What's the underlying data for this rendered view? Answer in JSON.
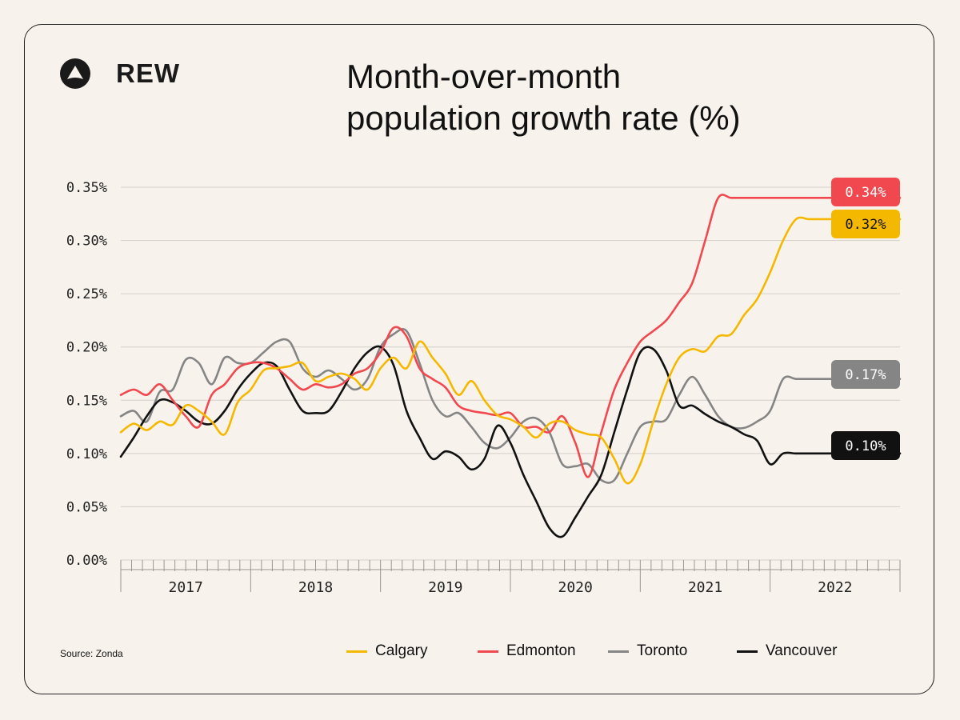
{
  "brand": {
    "name": "REW"
  },
  "title_lines": [
    "Month-over-month",
    "population growth rate (%)"
  ],
  "source": "Source: Zonda",
  "colors": {
    "calgary": "#f5b800",
    "edmonton": "#f0484e",
    "toronto": "#858585",
    "vancouver": "#111111",
    "grid": "#d4d0c8",
    "axis": "#9a9690"
  },
  "chart_data": {
    "type": "line",
    "title": "Month-over-month population growth rate (%)",
    "xlabel": "",
    "ylabel": "",
    "x_range": [
      2016.9,
      2022.9
    ],
    "ylim": [
      0,
      0.35
    ],
    "yticks": [
      0,
      0.05,
      0.1,
      0.15,
      0.2,
      0.25,
      0.3,
      0.35
    ],
    "ytick_labels": [
      "0.00%",
      "0.05%",
      "0.10%",
      "0.15%",
      "0.20%",
      "0.25%",
      "0.30%",
      "0.35%"
    ],
    "xtick_labels": [
      "2017",
      "2018",
      "2019",
      "2020",
      "2021",
      "2022"
    ],
    "grid": true,
    "legend_placement": "bottom",
    "end_labels": [
      {
        "series": "Edmonton",
        "text": "0.34%"
      },
      {
        "series": "Calgary",
        "text": "0.32%"
      },
      {
        "series": "Toronto",
        "text": "0.17%"
      },
      {
        "series": "Vancouver",
        "text": "0.10%"
      }
    ],
    "series": [
      {
        "name": "Calgary",
        "x": [
          2016.9,
          2017.0,
          2017.1,
          2017.2,
          2017.3,
          2017.4,
          2017.5,
          2017.6,
          2017.7,
          2017.8,
          2017.9,
          2018.0,
          2018.1,
          2018.2,
          2018.3,
          2018.4,
          2018.5,
          2018.6,
          2018.7,
          2018.8,
          2018.9,
          2019.0,
          2019.1,
          2019.2,
          2019.3,
          2019.4,
          2019.5,
          2019.6,
          2019.7,
          2019.8,
          2019.9,
          2020.0,
          2020.1,
          2020.2,
          2020.3,
          2020.4,
          2020.5,
          2020.6,
          2020.7,
          2020.8,
          2020.9,
          2021.0,
          2021.1,
          2021.2,
          2021.3,
          2021.4,
          2021.5,
          2021.6,
          2021.7,
          2021.8,
          2021.9,
          2022.0,
          2022.1,
          2022.2,
          2022.3,
          2022.4,
          2022.5,
          2022.6,
          2022.7,
          2022.8,
          2022.9
        ],
        "y": [
          0.12,
          0.128,
          0.122,
          0.13,
          0.127,
          0.145,
          0.14,
          0.13,
          0.118,
          0.148,
          0.16,
          0.178,
          0.18,
          0.182,
          0.185,
          0.168,
          0.172,
          0.175,
          0.17,
          0.16,
          0.18,
          0.19,
          0.18,
          0.205,
          0.19,
          0.175,
          0.155,
          0.168,
          0.15,
          0.136,
          0.132,
          0.125,
          0.115,
          0.128,
          0.13,
          0.122,
          0.118,
          0.115,
          0.095,
          0.072,
          0.09,
          0.13,
          0.165,
          0.19,
          0.198,
          0.196,
          0.21,
          0.212,
          0.23,
          0.245,
          0.27,
          0.3,
          0.32,
          0.32,
          0.32,
          0.32,
          0.32,
          0.32,
          0.32,
          0.32,
          0.32
        ]
      },
      {
        "name": "Edmonton",
        "x": [
          2016.9,
          2017.0,
          2017.1,
          2017.2,
          2017.3,
          2017.4,
          2017.5,
          2017.6,
          2017.7,
          2017.8,
          2017.9,
          2018.0,
          2018.1,
          2018.2,
          2018.3,
          2018.4,
          2018.5,
          2018.6,
          2018.7,
          2018.8,
          2018.9,
          2019.0,
          2019.1,
          2019.2,
          2019.3,
          2019.4,
          2019.5,
          2019.6,
          2019.7,
          2019.8,
          2019.9,
          2020.0,
          2020.1,
          2020.2,
          2020.3,
          2020.4,
          2020.5,
          2020.6,
          2020.7,
          2020.8,
          2020.9,
          2021.0,
          2021.1,
          2021.2,
          2021.3,
          2021.4,
          2021.5,
          2021.6,
          2021.7,
          2021.8,
          2021.9,
          2022.0,
          2022.1,
          2022.2,
          2022.3,
          2022.4,
          2022.5,
          2022.6,
          2022.7,
          2022.8,
          2022.9
        ],
        "y": [
          0.155,
          0.16,
          0.155,
          0.165,
          0.15,
          0.135,
          0.125,
          0.155,
          0.165,
          0.18,
          0.185,
          0.185,
          0.18,
          0.17,
          0.16,
          0.165,
          0.162,
          0.165,
          0.175,
          0.18,
          0.195,
          0.218,
          0.21,
          0.18,
          0.17,
          0.162,
          0.145,
          0.14,
          0.138,
          0.136,
          0.138,
          0.125,
          0.125,
          0.12,
          0.135,
          0.11,
          0.078,
          0.12,
          0.16,
          0.185,
          0.205,
          0.215,
          0.225,
          0.242,
          0.26,
          0.3,
          0.34,
          0.34,
          0.34,
          0.34,
          0.34,
          0.34,
          0.34,
          0.34,
          0.34,
          0.34,
          0.34,
          0.34,
          0.34,
          0.34,
          0.34
        ]
      },
      {
        "name": "Toronto",
        "x": [
          2016.9,
          2017.0,
          2017.1,
          2017.2,
          2017.3,
          2017.4,
          2017.5,
          2017.6,
          2017.7,
          2017.8,
          2017.9,
          2018.0,
          2018.1,
          2018.2,
          2018.3,
          2018.4,
          2018.5,
          2018.6,
          2018.7,
          2018.8,
          2018.9,
          2019.0,
          2019.1,
          2019.2,
          2019.3,
          2019.4,
          2019.5,
          2019.6,
          2019.7,
          2019.8,
          2019.9,
          2020.0,
          2020.1,
          2020.2,
          2020.3,
          2020.4,
          2020.5,
          2020.6,
          2020.7,
          2020.8,
          2020.9,
          2021.0,
          2021.1,
          2021.2,
          2021.3,
          2021.4,
          2021.5,
          2021.6,
          2021.7,
          2021.8,
          2021.9,
          2022.0,
          2022.1,
          2022.2,
          2022.3,
          2022.4,
          2022.5,
          2022.6,
          2022.7,
          2022.8,
          2022.9
        ],
        "y": [
          0.135,
          0.14,
          0.13,
          0.158,
          0.16,
          0.188,
          0.185,
          0.165,
          0.19,
          0.185,
          0.185,
          0.195,
          0.205,
          0.205,
          0.18,
          0.172,
          0.178,
          0.17,
          0.16,
          0.17,
          0.2,
          0.212,
          0.215,
          0.185,
          0.15,
          0.135,
          0.138,
          0.125,
          0.11,
          0.105,
          0.115,
          0.13,
          0.133,
          0.12,
          0.09,
          0.088,
          0.09,
          0.075,
          0.075,
          0.1,
          0.125,
          0.13,
          0.132,
          0.155,
          0.172,
          0.155,
          0.135,
          0.125,
          0.124,
          0.13,
          0.14,
          0.17,
          0.17,
          0.17,
          0.17,
          0.17,
          0.17,
          0.17,
          0.17,
          0.17,
          0.17
        ]
      },
      {
        "name": "Vancouver",
        "x": [
          2016.9,
          2017.0,
          2017.1,
          2017.2,
          2017.3,
          2017.4,
          2017.5,
          2017.6,
          2017.7,
          2017.8,
          2017.9,
          2018.0,
          2018.1,
          2018.2,
          2018.3,
          2018.4,
          2018.5,
          2018.6,
          2018.7,
          2018.8,
          2018.9,
          2019.0,
          2019.1,
          2019.2,
          2019.3,
          2019.4,
          2019.5,
          2019.6,
          2019.7,
          2019.8,
          2019.9,
          2020.0,
          2020.1,
          2020.2,
          2020.3,
          2020.4,
          2020.5,
          2020.6,
          2020.7,
          2020.8,
          2020.9,
          2021.0,
          2021.1,
          2021.2,
          2021.3,
          2021.4,
          2021.5,
          2021.6,
          2021.7,
          2021.8,
          2021.9,
          2022.0,
          2022.1,
          2022.2,
          2022.3,
          2022.4,
          2022.5,
          2022.6,
          2022.7,
          2022.8,
          2022.9
        ],
        "y": [
          0.097,
          0.115,
          0.135,
          0.15,
          0.148,
          0.14,
          0.13,
          0.128,
          0.14,
          0.16,
          0.175,
          0.185,
          0.182,
          0.16,
          0.14,
          0.138,
          0.14,
          0.158,
          0.18,
          0.195,
          0.2,
          0.183,
          0.14,
          0.115,
          0.095,
          0.102,
          0.097,
          0.085,
          0.095,
          0.126,
          0.11,
          0.08,
          0.055,
          0.03,
          0.022,
          0.04,
          0.06,
          0.08,
          0.12,
          0.16,
          0.195,
          0.198,
          0.178,
          0.145,
          0.145,
          0.137,
          0.13,
          0.125,
          0.118,
          0.112,
          0.09,
          0.1,
          0.1,
          0.1,
          0.1,
          0.1,
          0.1,
          0.1,
          0.1,
          0.1,
          0.1
        ]
      }
    ]
  },
  "legend": [
    {
      "name": "Calgary",
      "color_key": "calgary"
    },
    {
      "name": "Edmonton",
      "color_key": "edmonton"
    },
    {
      "name": "Toronto",
      "color_key": "toronto"
    },
    {
      "name": "Vancouver",
      "color_key": "vancouver"
    }
  ]
}
